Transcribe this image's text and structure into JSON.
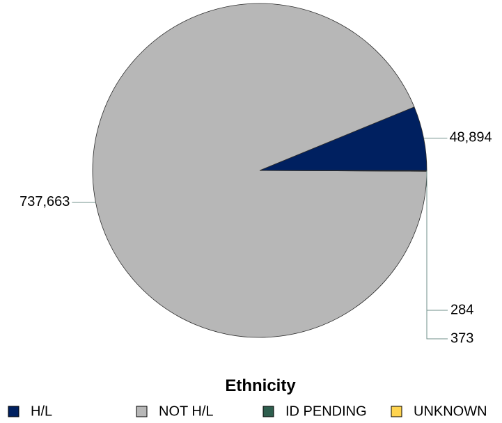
{
  "chart_data": {
    "type": "pie",
    "title": "Ethnicity",
    "legend_position": "bottom",
    "start_angle_deg": 0,
    "direction": "counterclockwise",
    "slices": [
      {
        "name": "H/L",
        "value": 48894,
        "label": "48,894",
        "color": "#002060"
      },
      {
        "name": "NOT H/L",
        "value": 737663,
        "label": "737,663",
        "color": "#b7b7b7"
      },
      {
        "name": "ID PENDING",
        "value": 284,
        "label": "284",
        "color": "#2e5e4e"
      },
      {
        "name": "UNKNOWN",
        "value": 373,
        "label": "373",
        "color": "#ffd44f"
      }
    ]
  }
}
